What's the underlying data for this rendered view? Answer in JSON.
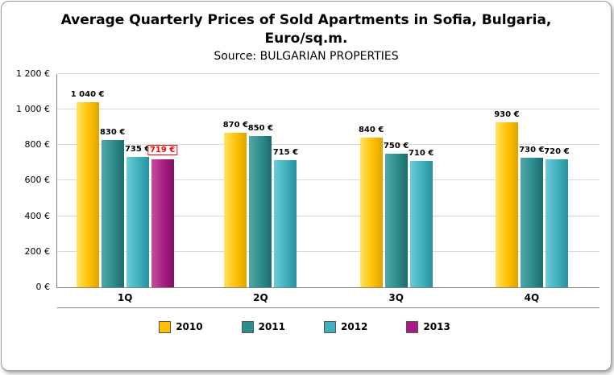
{
  "title_line1": "Average Quarterly Prices of Sold Apartments in Sofia, Bulgaria,",
  "title_line2": "Euro/sq.m.",
  "subtitle": "Source: BULGARIAN PROPERTIES",
  "chart_data": {
    "type": "bar",
    "title": "Average Quarterly Prices of Sold Apartments in Sofia, Bulgaria, Euro/sq.m.",
    "subtitle": "Source: BULGARIAN PROPERTIES",
    "categories": [
      "1Q",
      "2Q",
      "3Q",
      "4Q"
    ],
    "series": [
      {
        "name": "2010",
        "color": "#FFC000",
        "color_light": "#FFE266",
        "color_dark": "#DFA300",
        "values": [
          1040,
          870,
          840,
          930
        ],
        "labels": [
          "1 040 €",
          "870 €",
          "840 €",
          "930 €"
        ]
      },
      {
        "name": "2011",
        "color": "#2E8C8C",
        "color_light": "#4FA8A8",
        "color_dark": "#1C6B6B",
        "values": [
          830,
          850,
          750,
          730
        ],
        "labels": [
          "830 €",
          "850 €",
          "750 €",
          "730 €"
        ]
      },
      {
        "name": "2012",
        "color": "#3FB0BE",
        "color_light": "#6CCAD6",
        "color_dark": "#27909E",
        "values": [
          735,
          715,
          710,
          720
        ],
        "labels": [
          "735 €",
          "715 €",
          "710 €",
          "720 €"
        ]
      },
      {
        "name": "2013",
        "color": "#A81C82",
        "color_light": "#C5519F",
        "color_dark": "#821263",
        "values": [
          719,
          null,
          null,
          null
        ],
        "labels": [
          "719 €",
          null,
          null,
          null
        ],
        "label_color": "#FF0000",
        "label_boxed": true
      }
    ],
    "ticks": [
      {
        "v": 0,
        "label": "0 €"
      },
      {
        "v": 200,
        "label": "200 €"
      },
      {
        "v": 400,
        "label": "400 €"
      },
      {
        "v": 600,
        "label": "600 €"
      },
      {
        "v": 800,
        "label": "800 €"
      },
      {
        "v": 1000,
        "label": "1 000 €"
      },
      {
        "v": 1200,
        "label": "1 200 €"
      }
    ],
    "ylim": [
      0,
      1200
    ],
    "grid": true,
    "legend_position": "bottom"
  }
}
